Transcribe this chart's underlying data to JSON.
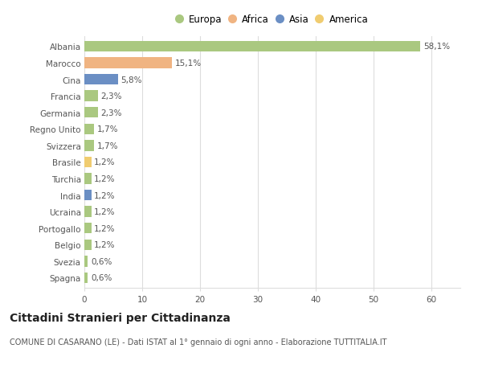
{
  "countries": [
    "Albania",
    "Marocco",
    "Cina",
    "Francia",
    "Germania",
    "Regno Unito",
    "Svizzera",
    "Brasile",
    "Turchia",
    "India",
    "Ucraina",
    "Portogallo",
    "Belgio",
    "Svezia",
    "Spagna"
  ],
  "values": [
    58.1,
    15.1,
    5.8,
    2.3,
    2.3,
    1.7,
    1.7,
    1.2,
    1.2,
    1.2,
    1.2,
    1.2,
    1.2,
    0.6,
    0.6
  ],
  "labels": [
    "58,1%",
    "15,1%",
    "5,8%",
    "2,3%",
    "2,3%",
    "1,7%",
    "1,7%",
    "1,2%",
    "1,2%",
    "1,2%",
    "1,2%",
    "1,2%",
    "1,2%",
    "0,6%",
    "0,6%"
  ],
  "colors": [
    "#aac880",
    "#f0b482",
    "#6b8fc4",
    "#aac880",
    "#aac880",
    "#aac880",
    "#aac880",
    "#f0cc70",
    "#aac880",
    "#6b8fc4",
    "#aac880",
    "#aac880",
    "#aac880",
    "#aac880",
    "#aac880"
  ],
  "legend_labels": [
    "Europa",
    "Africa",
    "Asia",
    "America"
  ],
  "legend_colors": [
    "#aac880",
    "#f0b482",
    "#6b8fc4",
    "#f0cc70"
  ],
  "title": "Cittadini Stranieri per Cittadinanza",
  "subtitle": "COMUNE DI CASARANO (LE) - Dati ISTAT al 1° gennaio di ogni anno - Elaborazione TUTTITALIA.IT",
  "xlim": [
    0,
    65
  ],
  "xticks": [
    0,
    10,
    20,
    30,
    40,
    50,
    60
  ],
  "background_color": "#ffffff",
  "grid_color": "#dddddd",
  "bar_height": 0.65,
  "label_fontsize": 7.5,
  "tick_fontsize": 7.5,
  "title_fontsize": 10,
  "subtitle_fontsize": 7,
  "legend_fontsize": 8.5
}
